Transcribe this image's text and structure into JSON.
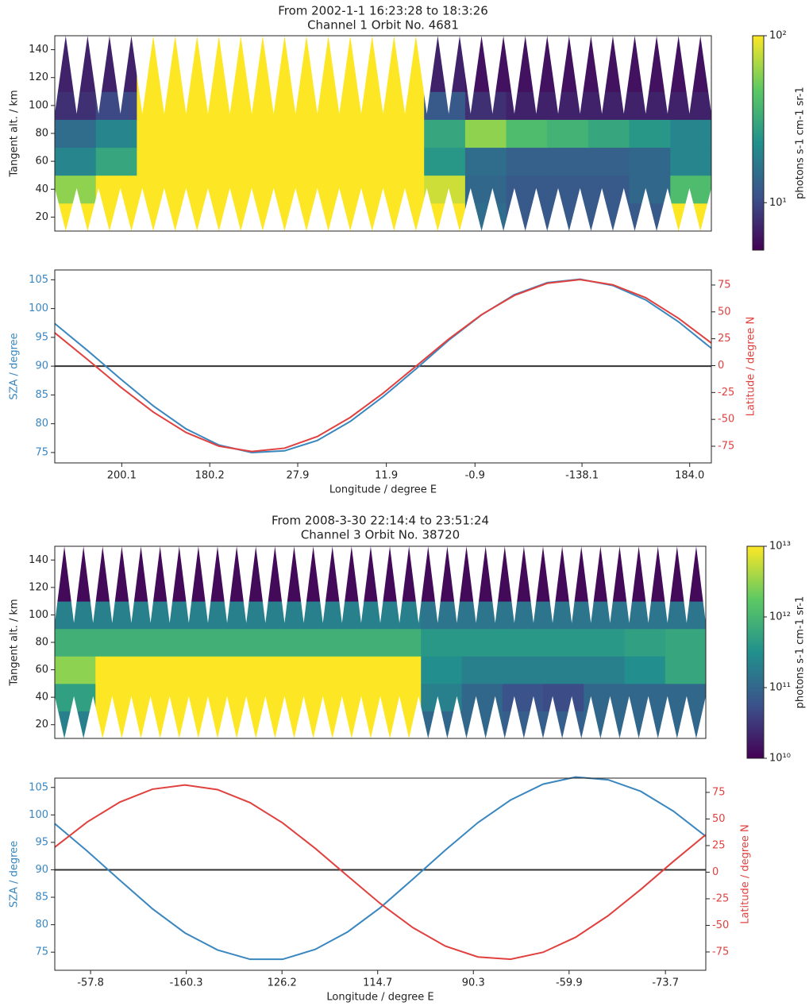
{
  "chart_data": [
    {
      "type": "heatmap",
      "title": "From 2002-1-1 16:23:28 to 18:3:26",
      "subtitle": "Channel 1 Orbit No. 4681",
      "ylabel": "Tangent alt. / km",
      "ylim": [
        10,
        150
      ],
      "yticks": [
        20,
        40,
        60,
        80,
        100,
        120,
        140
      ],
      "ybins": [
        10,
        30,
        50,
        70,
        90,
        110,
        130,
        150
      ],
      "colormap": "viridis",
      "log_color": true,
      "z": [
        [
          100,
          100,
          100,
          100,
          100,
          100,
          100,
          100,
          100,
          100,
          15,
          12,
          12,
          12,
          12,
          100
        ],
        [
          60,
          100,
          100,
          100,
          100,
          100,
          100,
          100,
          100,
          80,
          14,
          12,
          12,
          12,
          14,
          40
        ],
        [
          20,
          30,
          100,
          100,
          100,
          100,
          100,
          100,
          100,
          25,
          15,
          13,
          13,
          13,
          14,
          20
        ],
        [
          15,
          20,
          100,
          100,
          100,
          100,
          100,
          100,
          100,
          30,
          60,
          40,
          35,
          30,
          25,
          20
        ],
        [
          8,
          10,
          100,
          100,
          100,
          100,
          100,
          100,
          100,
          12,
          8,
          7,
          7,
          7,
          7,
          7
        ],
        [
          7,
          7,
          100,
          100,
          100,
          100,
          100,
          100,
          100,
          7,
          6,
          6,
          6,
          6,
          6,
          6
        ],
        [
          7,
          7,
          100,
          100,
          100,
          100,
          100,
          100,
          100,
          7,
          6,
          6,
          6,
          6,
          6,
          6
        ]
      ],
      "zlim": [
        5.2,
        100
      ],
      "colorbar_label": "photons s-1 cm-1 sr-1",
      "colorbar_ticks": [
        {
          "value": 10,
          "label": "10¹"
        },
        {
          "value": 100,
          "label": "10²"
        }
      ]
    },
    {
      "type": "line",
      "xlabel": "Longitude / degree E",
      "ylabel": "SZA / degree",
      "y2label": "Latitude / degree N",
      "xlim": [
        0,
        100
      ],
      "ylim": [
        73.2,
        106.7
      ],
      "y2lim": [
        -90.5,
        89
      ],
      "xticks": [
        {
          "value": 10.2,
          "label": "200.1"
        },
        {
          "value": 23.6,
          "label": "180.2"
        },
        {
          "value": 37.0,
          "label": "27.9"
        },
        {
          "value": 50.5,
          "label": "11.9"
        },
        {
          "value": 64.0,
          "label": "-0.9"
        },
        {
          "value": 80.3,
          "label": "-138.1"
        },
        {
          "value": 96.7,
          "label": "184.0"
        }
      ],
      "yticks": [
        75,
        80,
        85,
        90,
        95,
        100,
        105
      ],
      "y2ticks": [
        -75,
        -50,
        -25,
        0,
        25,
        50,
        75
      ],
      "hline": 90,
      "x": [
        0,
        5,
        10,
        15,
        20,
        25,
        30,
        35,
        40,
        45,
        50,
        55,
        60,
        65,
        70,
        75,
        80,
        85,
        90,
        95,
        100
      ],
      "series": [
        {
          "name": "SZA",
          "color": "#3a87c0",
          "values": [
            97.4,
            92.7,
            87.8,
            83.1,
            79.1,
            76.3,
            75.0,
            75.3,
            77.1,
            80.4,
            84.7,
            89.5,
            94.5,
            98.9,
            102.4,
            104.5,
            105.1,
            104.0,
            101.5,
            97.7,
            93.1
          ]
        },
        {
          "name": "Latitude",
          "color": "#e0413f",
          "axis": "y2",
          "values": [
            30.5,
            5.6,
            -19.8,
            -43.2,
            -62.2,
            -74.9,
            -79.9,
            -76.8,
            -65.9,
            -48.2,
            -25.7,
            -0.6,
            24.7,
            47.4,
            65.3,
            76.6,
            80.0,
            75.2,
            63.2,
            44.0,
            21.0
          ]
        }
      ]
    },
    {
      "type": "heatmap",
      "title": "From 2008-3-30 22:14:4 to 23:51:24",
      "subtitle": "Channel 3 Orbit No. 38720",
      "ylabel": "Tangent alt. / km",
      "ylim": [
        10,
        150
      ],
      "yticks": [
        20,
        40,
        60,
        80,
        100,
        120,
        140
      ],
      "ybins": [
        10,
        30,
        50,
        70,
        90,
        110,
        130,
        150
      ],
      "colormap": "viridis",
      "log_color": true,
      "z": [
        [
          200000000000.0,
          10000000000000.0,
          10000000000000.0,
          10000000000000.0,
          10000000000000.0,
          10000000000000.0,
          10000000000000.0,
          10000000000000.0,
          10000000000000.0,
          100000000000.0,
          100000000000.0,
          80000000000.0,
          80000000000.0,
          100000000000.0,
          100000000000.0,
          100000000000.0
        ],
        [
          500000000000.0,
          10000000000000.0,
          10000000000000.0,
          10000000000000.0,
          10000000000000.0,
          10000000000000.0,
          10000000000000.0,
          10000000000000.0,
          10000000000000.0,
          200000000000.0,
          100000000000.0,
          60000000000.0,
          50000000000.0,
          100000000000.0,
          100000000000.0,
          100000000000.0
        ],
        [
          3000000000000.0,
          10000000000000.0,
          10000000000000.0,
          10000000000000.0,
          10000000000000.0,
          10000000000000.0,
          10000000000000.0,
          10000000000000.0,
          10000000000000.0,
          300000000000.0,
          200000000000.0,
          200000000000.0,
          200000000000.0,
          200000000000.0,
          300000000000.0,
          600000000000.0
        ],
        [
          800000000000.0,
          800000000000.0,
          800000000000.0,
          800000000000.0,
          800000000000.0,
          800000000000.0,
          800000000000.0,
          800000000000.0,
          800000000000.0,
          400000000000.0,
          400000000000.0,
          400000000000.0,
          400000000000.0,
          400000000000.0,
          500000000000.0,
          600000000000.0
        ],
        [
          200000000000.0,
          200000000000.0,
          200000000000.0,
          200000000000.0,
          200000000000.0,
          200000000000.0,
          200000000000.0,
          200000000000.0,
          200000000000.0,
          150000000000.0,
          150000000000.0,
          150000000000.0,
          150000000000.0,
          150000000000.0,
          150000000000.0,
          150000000000.0
        ],
        [
          12000000000.0,
          12000000000.0,
          12000000000.0,
          12000000000.0,
          12000000000.0,
          12000000000.0,
          12000000000.0,
          12000000000.0,
          12000000000.0,
          12000000000.0,
          12000000000.0,
          12000000000.0,
          12000000000.0,
          12000000000.0,
          12000000000.0,
          12000000000.0
        ],
        [
          12000000000.0,
          12000000000.0,
          12000000000.0,
          12000000000.0,
          12000000000.0,
          12000000000.0,
          12000000000.0,
          12000000000.0,
          12000000000.0,
          12000000000.0,
          12000000000.0,
          12000000000.0,
          12000000000.0,
          12000000000.0,
          12000000000.0,
          12000000000.0
        ]
      ],
      "zlim": [
        10000000000.0,
        10000000000000.0
      ],
      "colorbar_label": "photons s-1 cm-1 sr-1",
      "colorbar_ticks": [
        {
          "value": 10000000000.0,
          "label": "10¹⁰"
        },
        {
          "value": 100000000000.0,
          "label": "10¹¹"
        },
        {
          "value": 1000000000000.0,
          "label": "10¹²"
        },
        {
          "value": 10000000000000.0,
          "label": "10¹³"
        }
      ]
    },
    {
      "type": "line",
      "xlabel": "Longitude / degree E",
      "ylabel": "SZA / degree",
      "y2label": "Latitude / degree N",
      "xlim": [
        0,
        100
      ],
      "ylim": [
        71.7,
        106.7
      ],
      "y2lim": [
        -92.2,
        88.4
      ],
      "xticks": [
        {
          "value": 5.5,
          "label": "-57.8"
        },
        {
          "value": 20.2,
          "label": "-160.3"
        },
        {
          "value": 34.9,
          "label": "126.2"
        },
        {
          "value": 49.6,
          "label": "114.7"
        },
        {
          "value": 64.3,
          "label": "90.3"
        },
        {
          "value": 79.0,
          "label": "-59.9"
        },
        {
          "value": 93.8,
          "label": "-73.7"
        }
      ],
      "yticks": [
        75,
        80,
        85,
        90,
        95,
        100,
        105
      ],
      "y2ticks": [
        -75,
        -50,
        -25,
        0,
        25,
        50,
        75
      ],
      "hline": 90,
      "x": [
        0,
        5,
        10,
        15,
        20,
        25,
        30,
        35,
        40,
        45,
        50,
        55,
        60,
        65,
        70,
        75,
        80,
        85,
        90,
        95,
        100
      ],
      "series": [
        {
          "name": "SZA",
          "color": "#3a87c0",
          "values": [
            98.4,
            93.4,
            88.1,
            82.9,
            78.5,
            75.4,
            73.7,
            73.7,
            75.5,
            78.7,
            83.1,
            88.3,
            93.6,
            98.6,
            102.7,
            105.6,
            106.9,
            106.4,
            104.3,
            100.7,
            96.1
          ]
        },
        {
          "name": "Latitude",
          "color": "#e0413f",
          "axis": "y2",
          "values": [
            23.5,
            47.2,
            65.9,
            78.0,
            82.0,
            77.6,
            65.3,
            46.3,
            22.4,
            -3.7,
            -29.5,
            -52.1,
            -69.5,
            -79.7,
            -81.8,
            -75.3,
            -61.2,
            -40.9,
            -16.3,
            10.0,
            35.2
          ]
        }
      ]
    }
  ]
}
